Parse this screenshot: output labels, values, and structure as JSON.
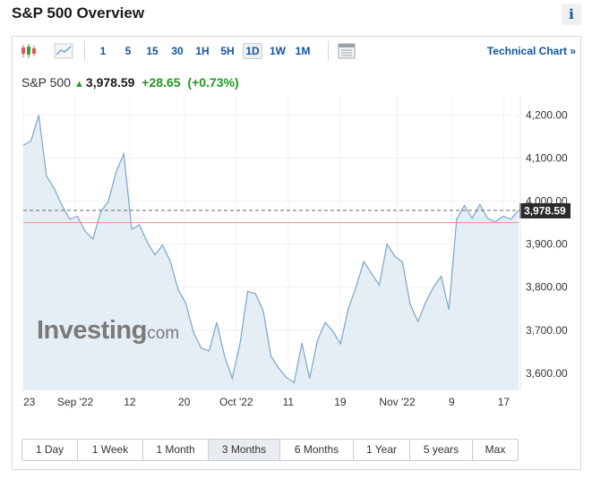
{
  "page": {
    "title": "S&P 500 Overview",
    "info_label": "i"
  },
  "toolbar": {
    "intervals": [
      "1",
      "5",
      "15",
      "30",
      "1H",
      "5H",
      "1D",
      "1W",
      "1M"
    ],
    "active_interval": "1D",
    "technical_chart_label": "Technical Chart »"
  },
  "quote": {
    "name": "S&P 500",
    "direction": "up",
    "price": "3,978.59",
    "change": "+28.65",
    "change_pct": "(+0.73%)"
  },
  "colors": {
    "line": "#7aa5cc",
    "fill": "#e5edf5",
    "up": "#1e9a1e",
    "prev_close_line": "#f08c8c",
    "current_dashed": "#666666",
    "link": "#1256a0"
  },
  "watermark": {
    "brand": "Investing",
    "suffix": ".com"
  },
  "range_buttons": [
    "1 Day",
    "1 Week",
    "1 Month",
    "3 Months",
    "6 Months",
    "1 Year",
    "5 years",
    "Max"
  ],
  "active_range": "3 Months",
  "chart_data": {
    "type": "area",
    "y_ticks": [
      "4,200.00",
      "4,100.00",
      "4,000.00",
      "3,900.00",
      "3,800.00",
      "3,700.00",
      "3,600.00"
    ],
    "x_tick_labels": [
      "23",
      "Sep '22",
      "12",
      "20",
      "Oct '22",
      "11",
      "19",
      "Nov '22",
      "9",
      "17"
    ],
    "current_label": "3,978.59",
    "current_value": 3978.59,
    "previous_close_approx": 3950,
    "ylim": [
      3560,
      4220
    ],
    "grid": true,
    "values": [
      4130,
      4140,
      4200,
      4058,
      4030,
      3990,
      3958,
      3965,
      3930,
      3912,
      3975,
      4000,
      4068,
      4110,
      3935,
      3945,
      3905,
      3875,
      3898,
      3860,
      3795,
      3762,
      3695,
      3658,
      3652,
      3718,
      3640,
      3588,
      3668,
      3790,
      3785,
      3745,
      3640,
      3612,
      3590,
      3578,
      3670,
      3588,
      3675,
      3718,
      3698,
      3668,
      3750,
      3800,
      3860,
      3832,
      3805,
      3900,
      3872,
      3858,
      3760,
      3720,
      3765,
      3800,
      3825,
      3748,
      3958,
      3990,
      3960,
      3992,
      3960,
      3952,
      3965,
      3958,
      3978.59
    ]
  }
}
